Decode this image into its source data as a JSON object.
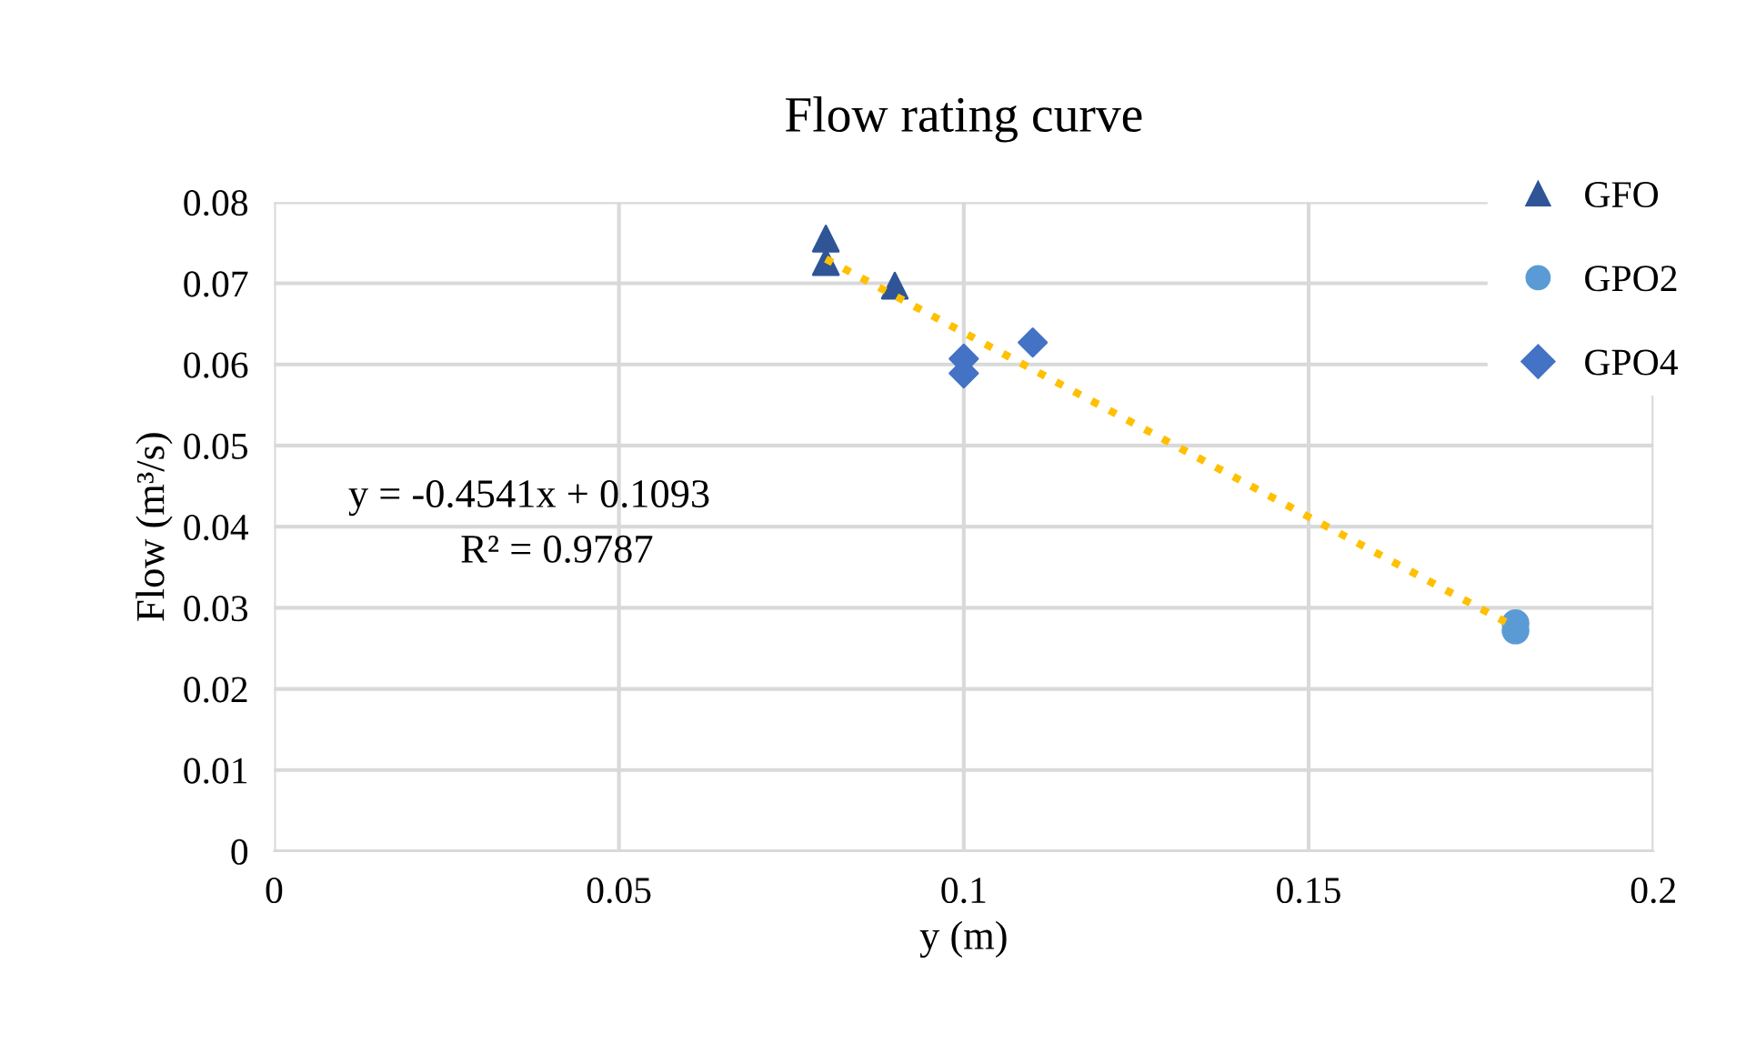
{
  "chart_data": {
    "type": "scatter",
    "title": "Flow rating curve",
    "xlabel": "y (m)",
    "ylabel": "Flow (m³/s)",
    "series": [
      {
        "name": "GFO",
        "color": "#2f5597",
        "marker": "triangle",
        "x": [
          0.08,
          0.08,
          0.09
        ],
        "values": [
          0.0755,
          0.0726,
          0.0697
        ]
      },
      {
        "name": "GPO2",
        "color": "#5b9bd5",
        "marker": "circle",
        "x": [
          0.18,
          0.18
        ],
        "values": [
          0.0281,
          0.0272
        ]
      },
      {
        "name": "GPO4",
        "color": "#4472c4",
        "marker": "diamond",
        "x": [
          0.1,
          0.1,
          0.11
        ],
        "values": [
          0.0607,
          0.0589,
          0.0627
        ]
      },
      {
        "type": "line",
        "color": "#ffc000",
        "line_style": "dotted",
        "marker": "none",
        "x": [
          0.08,
          0.18
        ],
        "values": [
          0.073,
          0.0276
        ]
      }
    ],
    "annotations": [
      "y = -0.4541x + 0.1093",
      "R² = 0.9787"
    ],
    "xlim": [
      0,
      0.2
    ],
    "xticks": [
      0,
      0.05,
      0.1,
      0.15,
      0.2
    ],
    "ylim": [
      0,
      0.08
    ],
    "yticks": [
      0,
      0.01,
      0.02,
      0.03,
      0.04,
      0.05,
      0.06,
      0.07,
      0.08
    ],
    "grid": true,
    "legend": "top right"
  }
}
